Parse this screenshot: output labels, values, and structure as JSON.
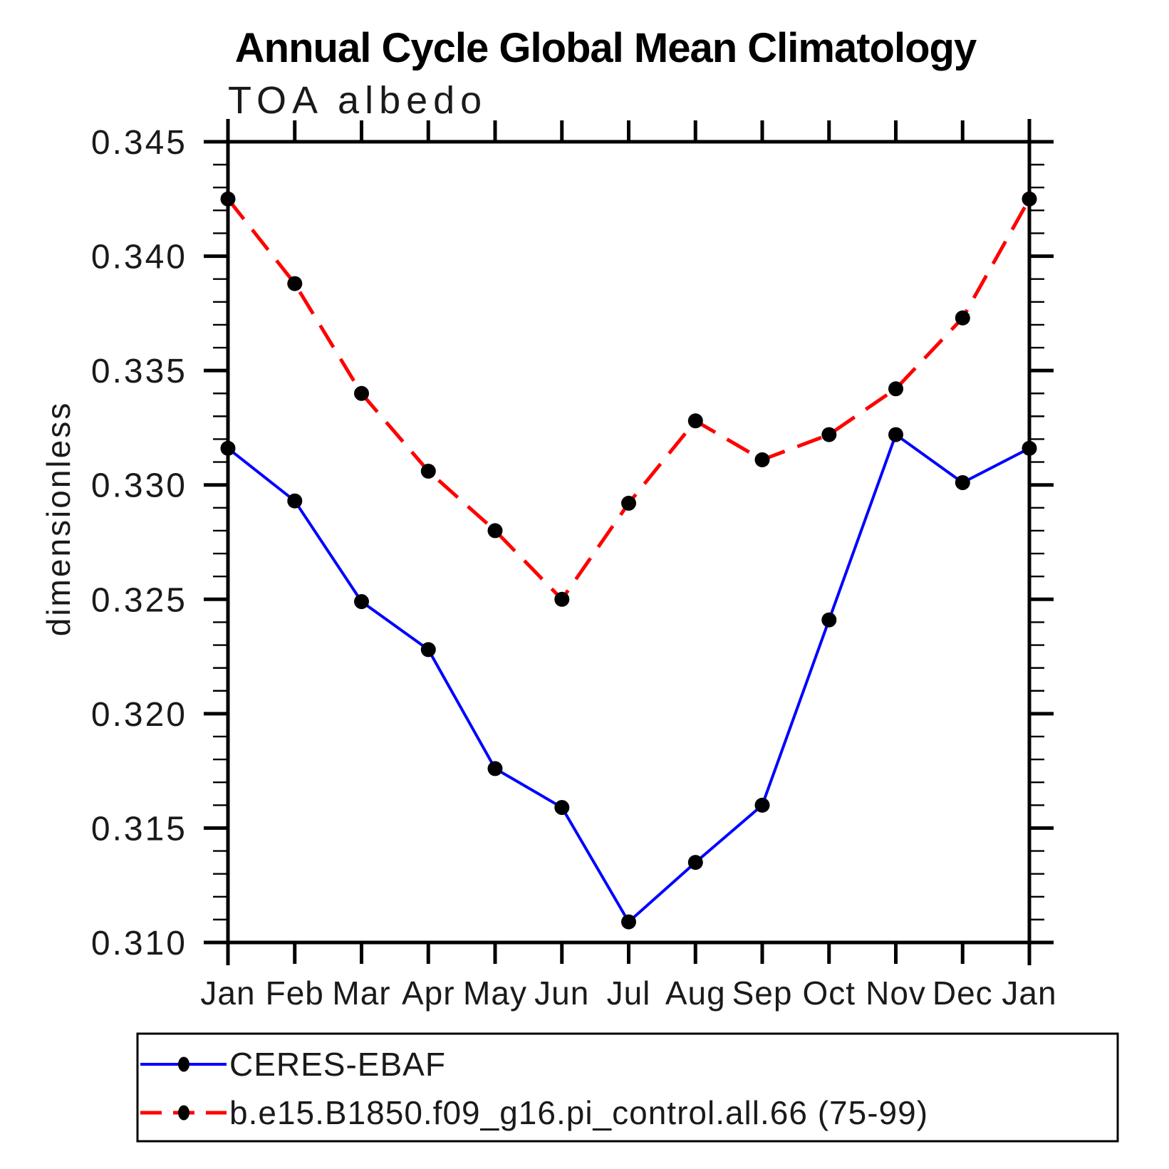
{
  "chart_data": {
    "type": "line",
    "title": "Annual Cycle Global Mean Climatology",
    "subtitle": "TOA albedo",
    "ylabel": "dimensionless",
    "xlabel": "",
    "categories": [
      "Jan",
      "Feb",
      "Mar",
      "Apr",
      "May",
      "Jun",
      "Jul",
      "Aug",
      "Sep",
      "Oct",
      "Nov",
      "Dec",
      "Jan"
    ],
    "series": [
      {
        "name": "CERES-EBAF",
        "color": "#0000ff",
        "line": "solid",
        "dash": "none",
        "marker": "circle",
        "values": [
          0.3316,
          0.3293,
          0.3249,
          0.3228,
          0.3176,
          0.3159,
          0.3109,
          0.3135,
          0.316,
          0.3241,
          0.3322,
          0.3301,
          0.3316
        ]
      },
      {
        "name": "b.e15.B1850.f09_g16.pi_control.all.66 (75-99)",
        "color": "#ff0000",
        "line": "dashed",
        "dash": "36 19",
        "marker": "circle",
        "values": [
          0.3425,
          0.3388,
          0.334,
          0.3306,
          0.328,
          0.325,
          0.3292,
          0.3328,
          0.3311,
          0.3322,
          0.3342,
          0.3373,
          0.3425
        ]
      }
    ],
    "ylim": [
      0.31,
      0.345
    ],
    "ytick_step": 0.005,
    "yminor_step": 0.001,
    "ytick_labels": [
      "0.345",
      "0.340",
      "0.335",
      "0.330",
      "0.325",
      "0.320",
      "0.315",
      "0.310"
    ],
    "marker_color": "#000000",
    "axis_color": "#000000",
    "grid": false,
    "legend_position": "bottom"
  }
}
